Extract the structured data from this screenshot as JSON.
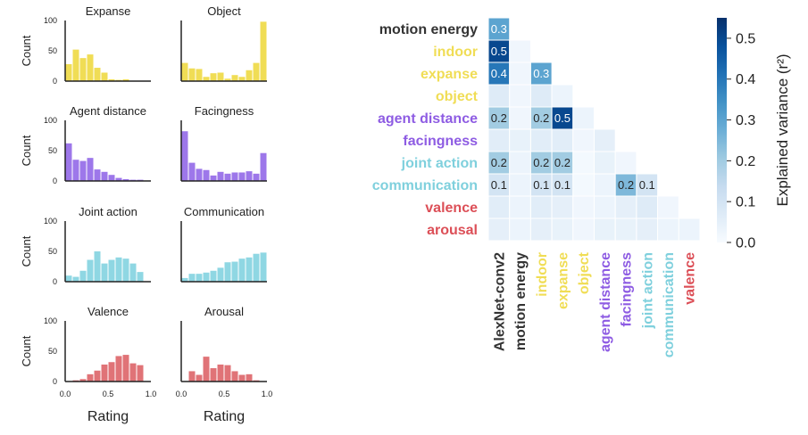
{
  "chart_data": [
    {
      "type": "bar",
      "layout": "histogram-grid",
      "xlabel": "Rating",
      "ylabel": "Count",
      "xlim": [
        0,
        1
      ],
      "ylim": [
        0,
        100
      ],
      "xticks": [
        "0.0",
        "0.5",
        "1.0"
      ],
      "yticks": [
        "0",
        "50",
        "100"
      ],
      "bins": 12,
      "panels": [
        {
          "title": "Expanse",
          "color": "#f0dd55",
          "values": [
            28,
            52,
            38,
            44,
            22,
            14,
            3,
            2,
            3,
            0,
            0,
            0
          ]
        },
        {
          "title": "Object",
          "color": "#f0dd55",
          "values": [
            30,
            21,
            20,
            7,
            13,
            14,
            4,
            10,
            7,
            18,
            30,
            98
          ]
        },
        {
          "title": "Agent distance",
          "color": "#9d77ea",
          "values": [
            62,
            35,
            33,
            38,
            19,
            15,
            10,
            5,
            3,
            2,
            2,
            0
          ]
        },
        {
          "title": "Facingness",
          "color": "#9d77ea",
          "values": [
            82,
            30,
            20,
            18,
            9,
            15,
            12,
            14,
            14,
            16,
            12,
            46
          ]
        },
        {
          "title": "Joint action",
          "color": "#8fd7e3",
          "values": [
            10,
            8,
            18,
            36,
            50,
            30,
            36,
            40,
            38,
            30,
            16,
            0
          ]
        },
        {
          "title": "Communication",
          "color": "#8fd7e3",
          "values": [
            6,
            13,
            13,
            15,
            18,
            23,
            32,
            33,
            38,
            40,
            46,
            48
          ]
        },
        {
          "title": "Valence",
          "color": "#e07377",
          "values": [
            0,
            2,
            4,
            12,
            18,
            28,
            32,
            42,
            44,
            30,
            27,
            0
          ]
        },
        {
          "title": "Arousal",
          "color": "#e07377",
          "values": [
            0,
            17,
            11,
            41,
            22,
            28,
            27,
            17,
            11,
            12,
            2,
            0
          ]
        }
      ]
    },
    {
      "type": "heatmap",
      "shape": "lower-triangle",
      "rows": [
        {
          "label": "motion energy",
          "color": "#333333"
        },
        {
          "label": "indoor",
          "color": "#f0dd55"
        },
        {
          "label": "expanse",
          "color": "#f0dd55"
        },
        {
          "label": "object",
          "color": "#f0dd55"
        },
        {
          "label": "agent distance",
          "color": "#8e5ce3"
        },
        {
          "label": "facingness",
          "color": "#8e5ce3"
        },
        {
          "label": "joint action",
          "color": "#7fd0dd"
        },
        {
          "label": "communication",
          "color": "#7fd0dd"
        },
        {
          "label": "valence",
          "color": "#dc4f57"
        },
        {
          "label": "arousal",
          "color": "#dc4f57"
        }
      ],
      "columns": [
        {
          "label": "AlexNet-conv2",
          "color": "#333333"
        },
        {
          "label": "motion energy",
          "color": "#333333"
        },
        {
          "label": "indoor",
          "color": "#f0dd55"
        },
        {
          "label": "expanse",
          "color": "#f0dd55"
        },
        {
          "label": "object",
          "color": "#f0dd55"
        },
        {
          "label": "agent distance",
          "color": "#8e5ce3"
        },
        {
          "label": "facingness",
          "color": "#8e5ce3"
        },
        {
          "label": "joint action",
          "color": "#7fd0dd"
        },
        {
          "label": "communication",
          "color": "#7fd0dd"
        },
        {
          "label": "valence",
          "color": "#dc4f57"
        }
      ],
      "values": [
        [
          0.3
        ],
        [
          0.5,
          0.02
        ],
        [
          0.4,
          0.02,
          0.3
        ],
        [
          0.07,
          0.02,
          0.07,
          0.03
        ],
        [
          0.2,
          0.02,
          0.2,
          0.5,
          0.03
        ],
        [
          0.06,
          0.04,
          0.06,
          0.06,
          0.02,
          0.05
        ],
        [
          0.2,
          0.03,
          0.2,
          0.2,
          0.01,
          0.04,
          0.02
        ],
        [
          0.1,
          0.03,
          0.1,
          0.1,
          0.01,
          0.03,
          0.25,
          0.1
        ],
        [
          0.06,
          0.03,
          0.06,
          0.05,
          0.02,
          0.03,
          0.05,
          0.07,
          0.02
        ],
        [
          0.05,
          0.03,
          0.05,
          0.04,
          0.02,
          0.04,
          0.04,
          0.05,
          0.03,
          0.03
        ]
      ],
      "annotations": [
        [
          0,
          0,
          "0.3"
        ],
        [
          1,
          0,
          "0.5"
        ],
        [
          2,
          0,
          "0.4"
        ],
        [
          2,
          2,
          "0.3"
        ],
        [
          4,
          0,
          "0.2"
        ],
        [
          4,
          2,
          "0.2"
        ],
        [
          4,
          3,
          "0.5"
        ],
        [
          6,
          0,
          "0.2"
        ],
        [
          6,
          2,
          "0.2"
        ],
        [
          6,
          3,
          "0.2"
        ],
        [
          7,
          0,
          "0.1"
        ],
        [
          7,
          2,
          "0.1"
        ],
        [
          7,
          3,
          "0.1"
        ],
        [
          7,
          6,
          "0.2"
        ],
        [
          7,
          7,
          "0.1"
        ]
      ],
      "colorbar": {
        "label": "Explained variance (r²)",
        "range": [
          0,
          0.55
        ],
        "ticks": [
          "0.0",
          "0.1",
          "0.2",
          "0.3",
          "0.4",
          "0.5"
        ],
        "colors": [
          "#f7fbff",
          "#deebf7",
          "#c6dbef",
          "#9ecae1",
          "#6baed6",
          "#4292c6",
          "#2171b5",
          "#08519c",
          "#08306b"
        ]
      }
    }
  ]
}
